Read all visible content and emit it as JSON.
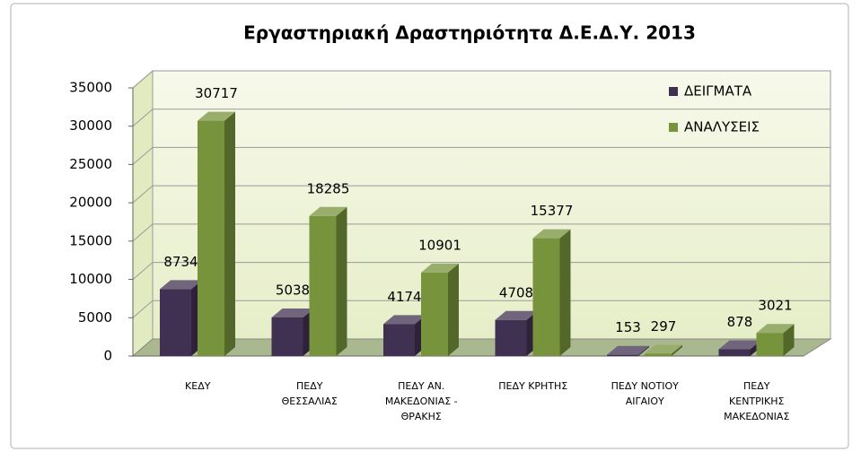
{
  "chart_data": {
    "type": "bar3d",
    "title": "Εργαστηριακή Δραστηριότητα Δ.Ε.Δ.Υ. 2013",
    "categories": [
      "ΚΕΔΥ",
      "ΠΕΔΥ\nΘΕΣΣΑΛΙΑΣ",
      "ΠΕΔΥ ΑΝ.\nΜΑΚΕΔΟΝΙΑΣ -\nΘΡΑΚΗΣ",
      "ΠΕΔΥ ΚΡΗΤΗΣ",
      "ΠΕΔΥ ΝΟΤΙΟΥ\nΑΙΓΑΙΟΥ",
      "ΠΕΔΥ\nΚΕΝΤΡΙΚΗΣ\nΜΑΚΕΔΟΝΙΑΣ"
    ],
    "series": [
      {
        "name": "ΔΕΙΓΜΑΤΑ",
        "color": "#403152",
        "values": [
          8734,
          5038,
          4174,
          4708,
          153,
          878
        ]
      },
      {
        "name": "ΑΝΑΛΥΣΕΙΣ",
        "color": "#77933c",
        "values": [
          30717,
          18285,
          10901,
          15377,
          297,
          3021
        ]
      }
    ],
    "ylim": [
      0,
      35000
    ],
    "yticks": [
      0,
      5000,
      10000,
      15000,
      20000,
      25000,
      30000,
      35000
    ],
    "grid": true,
    "legend": "top-right"
  }
}
